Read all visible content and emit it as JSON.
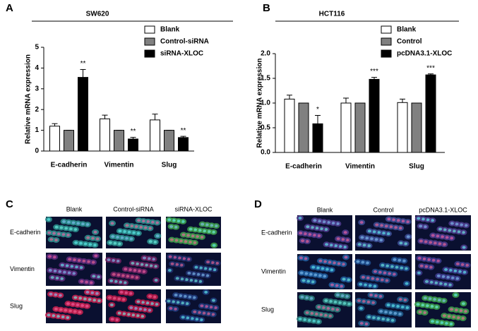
{
  "chart_data": [
    {
      "type": "bar",
      "panel_label": "A",
      "title": "SW620",
      "y_label": "Relative  mRNA  expression",
      "categories": [
        "E-cadherin",
        "Vimentin",
        "Slug"
      ],
      "series": [
        {
          "name": "Blank",
          "color": "#ffffff",
          "values": [
            1.2,
            1.55,
            1.5
          ],
          "errors": [
            0.12,
            0.18,
            0.28
          ]
        },
        {
          "name": "Control-siRNA",
          "color": "#808080",
          "values": [
            1,
            1,
            1
          ],
          "errors": [
            0,
            0,
            0
          ]
        },
        {
          "name": "siRNA-XLOC",
          "color": "#000000",
          "values": [
            3.55,
            0.58,
            0.65
          ],
          "errors": [
            0.38,
            0.08,
            0.06
          ],
          "significance": [
            "**",
            "**",
            "**"
          ]
        }
      ],
      "ylim": [
        0,
        5
      ],
      "yticks": [
        0,
        1,
        2,
        3,
        4,
        5
      ],
      "legend": "top-right"
    },
    {
      "type": "bar",
      "panel_label": "B",
      "title": "HCT116",
      "y_label": "Relative  mRNA  expression",
      "categories": [
        "E-cadherin",
        "Vimentin",
        "Slug"
      ],
      "series": [
        {
          "name": "Blank",
          "color": "#ffffff",
          "values": [
            1.08,
            1.0,
            1.01
          ],
          "errors": [
            0.08,
            0.1,
            0.07
          ]
        },
        {
          "name": "Control",
          "color": "#808080",
          "values": [
            1,
            1,
            1
          ],
          "errors": [
            0,
            0,
            0
          ]
        },
        {
          "name": "pcDNA3.1-XLOC",
          "color": "#000000",
          "values": [
            0.58,
            1.48,
            1.57
          ],
          "errors": [
            0.17,
            0.04,
            0.02
          ],
          "significance": [
            "*",
            "***",
            "***"
          ]
        }
      ],
      "ylim": [
        0,
        2
      ],
      "yticks": [
        {
          "value": 0,
          "label": "0.0"
        },
        {
          "value": 0.5,
          "label": "0.5"
        },
        {
          "value": 1,
          "label": "1.0"
        },
        {
          "value": 1.5,
          "label": "1.5"
        },
        {
          "value": 2,
          "label": "2.0"
        }
      ],
      "legend": "top-right"
    }
  ],
  "image_panels": [
    {
      "label": "C",
      "columns": [
        "Blank",
        "Control-siRNA",
        "siRNA-XLOC"
      ],
      "rows": [
        "E-cadherin",
        "Vimentin",
        "Slug"
      ]
    },
    {
      "label": "D",
      "columns": [
        "Blank",
        "Control",
        "pcDNA3.1-XLOC"
      ],
      "rows": [
        "E-cadherin",
        "Vimentin",
        "Slug"
      ]
    }
  ]
}
